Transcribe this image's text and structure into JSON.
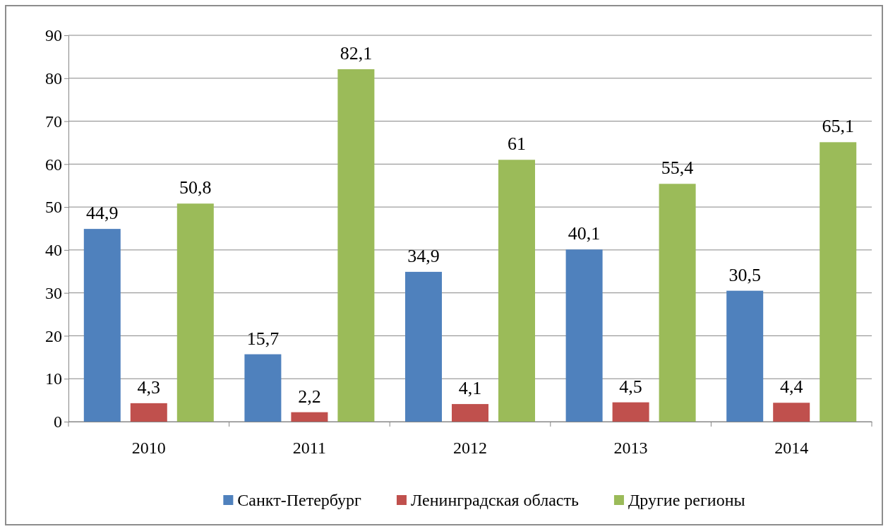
{
  "chart_data": {
    "type": "bar",
    "categories": [
      "2010",
      "2011",
      "2012",
      "2013",
      "2014"
    ],
    "series": [
      {
        "name": "Санкт-Петербург",
        "color": "#4f81bd",
        "values": [
          44.9,
          15.7,
          34.9,
          40.1,
          30.5
        ],
        "value_labels": [
          "44,9",
          "15,7",
          "34,9",
          "40,1",
          "30,5"
        ]
      },
      {
        "name": "Ленинградская область",
        "color": "#c0504d",
        "values": [
          4.3,
          2.2,
          4.1,
          4.5,
          4.4
        ],
        "value_labels": [
          "4,3",
          "2,2",
          "4,1",
          "4,5",
          "4,4"
        ]
      },
      {
        "name": "Другие регионы",
        "color": "#9bbb59",
        "values": [
          50.8,
          82.1,
          61,
          55.4,
          65.1
        ],
        "value_labels": [
          "50,8",
          "82,1",
          "61",
          "55,4",
          "65,1"
        ]
      }
    ],
    "ylim": [
      0,
      90
    ],
    "yticks": [
      0,
      10,
      20,
      30,
      40,
      50,
      60,
      70,
      80,
      90
    ],
    "grid": "y",
    "legend": "bottom"
  }
}
